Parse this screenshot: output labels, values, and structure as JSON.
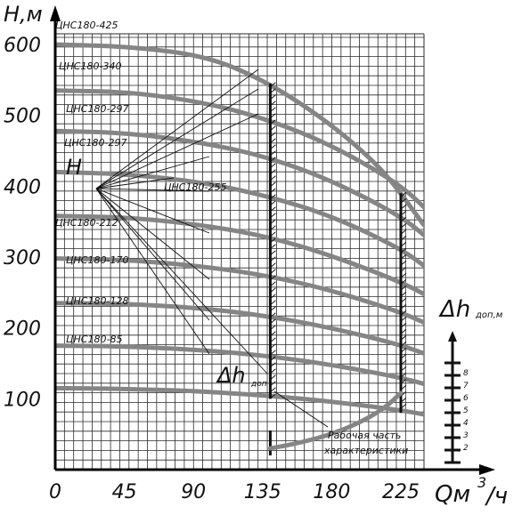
{
  "chart_data": {
    "type": "line",
    "title": "",
    "ylabel": "H,м",
    "xlabel_main": "Qм",
    "xlabel_sup": "3",
    "xlabel_tail": "/ч",
    "xlim": [
      0,
      260
    ],
    "ylim": [
      0,
      620
    ],
    "x_ticks": [
      "0",
      "45",
      "90",
      "135",
      "180",
      "225"
    ],
    "x_tick_values": [
      0,
      45,
      90,
      135,
      180,
      225
    ],
    "y_ticks": [
      "100",
      "200",
      "300",
      "400",
      "500",
      "600"
    ],
    "y_tick_values": [
      100,
      200,
      300,
      400,
      500,
      600
    ],
    "grid": true,
    "h_marker": "H",
    "dh_left": {
      "symbol": "Δh",
      "subscript": "доп"
    },
    "dh_right": {
      "symbol": "Δh",
      "subscript": "доп,м"
    },
    "dh_scale_labels": [
      "2",
      "3",
      "4",
      "5",
      "6",
      "7",
      "8"
    ],
    "dh_scale_values": [
      2,
      3,
      4,
      5,
      6,
      7,
      8
    ],
    "working_zone_label": [
      "Рабочая часть",
      "характеристики"
    ],
    "working_zone_bounds": [
      140,
      225
    ],
    "npsh_curve": {
      "x": [
        140,
        160,
        180,
        200,
        215,
        225
      ],
      "y": [
        30,
        38,
        50,
        68,
        88,
        108
      ]
    },
    "series": [
      {
        "name": "ЦНС180-425",
        "x": [
          0,
          50,
          100,
          140,
          180,
          210,
          225,
          240
        ],
        "y": [
          600,
          597,
          583,
          545,
          487,
          430,
          390,
          345
        ]
      },
      {
        "name": "ЦНС180-340",
        "x": [
          0,
          50,
          100,
          140,
          180,
          225,
          245
        ],
        "y": [
          535,
          533,
          517,
          493,
          458,
          402,
          360
        ]
      },
      {
        "name": "ЦНС180-297",
        "x": [
          0,
          50,
          100,
          140,
          180,
          225,
          245
        ],
        "y": [
          478,
          475,
          460,
          440,
          408,
          358,
          322
        ]
      },
      {
        "name": "ЦНС180-297",
        "x": [
          0,
          50,
          100,
          140,
          180,
          225,
          245
        ],
        "y": [
          420,
          417,
          404,
          385,
          358,
          312,
          280
        ]
      },
      {
        "name": "ЦНС180-255",
        "x": [
          0,
          50,
          100,
          140,
          180,
          225,
          245
        ],
        "y": [
          358,
          356,
          344,
          328,
          302,
          265,
          242
        ]
      },
      {
        "name": "ЦНС180-212",
        "x": [
          0,
          50,
          100,
          140,
          180,
          225,
          245
        ],
        "y": [
          298,
          296,
          286,
          273,
          253,
          222,
          203
        ]
      },
      {
        "name": "ЦНС180-170",
        "x": [
          0,
          50,
          100,
          140,
          180,
          225,
          245
        ],
        "y": [
          235,
          234,
          227,
          216,
          200,
          176,
          160
        ]
      },
      {
        "name": "ЦНС180-128",
        "x": [
          0,
          50,
          100,
          140,
          180,
          225,
          245
        ],
        "y": [
          175,
          174,
          168,
          160,
          148,
          130,
          118
        ]
      },
      {
        "name": "ЦНС180-85",
        "x": [
          0,
          50,
          100,
          140,
          180,
          225,
          245
        ],
        "y": [
          115,
          114,
          110,
          104,
          96,
          84,
          76
        ]
      }
    ],
    "colors": {
      "curve": "#858585",
      "grid": "#2a2a2a",
      "axis": "#000000"
    }
  }
}
